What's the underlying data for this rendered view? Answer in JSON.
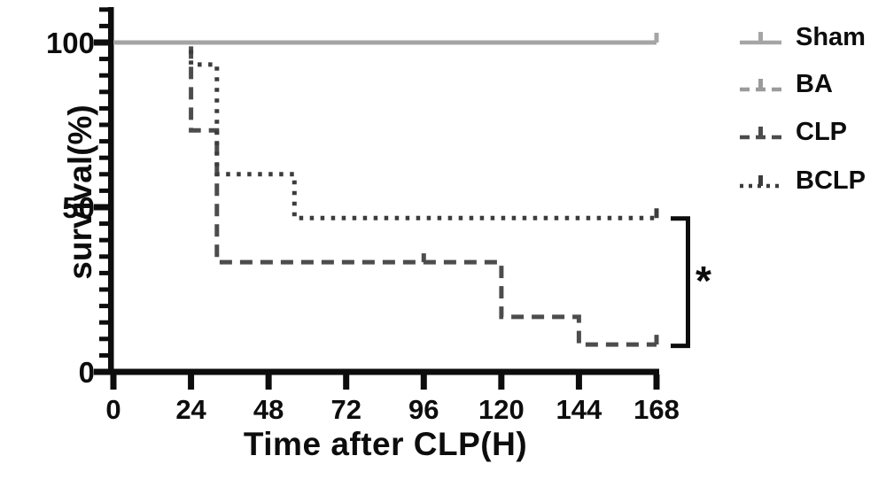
{
  "chart_data": {
    "type": "line",
    "subtype": "kaplan-meier-step",
    "title": "",
    "xlabel": "Time after CLP(H)",
    "ylabel": "survival(%)",
    "xlim": [
      0,
      168
    ],
    "ylim": [
      0,
      110
    ],
    "x_ticks": [
      "0",
      "24",
      "48",
      "72",
      "96",
      "120",
      "144",
      "168"
    ],
    "x_tick_values": [
      0,
      24,
      48,
      72,
      96,
      120,
      144,
      168
    ],
    "y_major_ticks": [
      "0",
      "50",
      "100"
    ],
    "y_major_tick_values": [
      0,
      50,
      100
    ],
    "y_minor_step": 5,
    "grid": false,
    "legend_position": "right-outside",
    "axis_color": "#0d0d0d",
    "series": [
      {
        "name": "Sham",
        "style": "solid",
        "color": "#a5a5a5",
        "points": [
          [
            0,
            100
          ],
          [
            168,
            100
          ]
        ],
        "end_tick": true
      },
      {
        "name": "BA",
        "style": "dashed",
        "color": "#9b9b9b",
        "points": [
          [
            0,
            100
          ],
          [
            168,
            100
          ]
        ],
        "end_tick": true
      },
      {
        "name": "CLP",
        "style": "dashed",
        "color": "#4c4c4c",
        "points": [
          [
            0,
            100
          ],
          [
            24,
            100
          ],
          [
            24,
            73.3
          ],
          [
            32,
            73.3
          ],
          [
            32,
            33.3
          ],
          [
            120,
            33.3
          ],
          [
            120,
            16.7
          ],
          [
            144,
            16.7
          ],
          [
            144,
            8.3
          ],
          [
            168,
            8.3
          ]
        ],
        "censor_ticks": [
          [
            96,
            33.3
          ]
        ],
        "end_tick": true
      },
      {
        "name": "BCLP",
        "style": "dotted",
        "color": "#3c3c3c",
        "points": [
          [
            0,
            100
          ],
          [
            24,
            100
          ],
          [
            24,
            93.3
          ],
          [
            32,
            93.3
          ],
          [
            32,
            60
          ],
          [
            56,
            60
          ],
          [
            56,
            46.7
          ],
          [
            168,
            46.7
          ]
        ],
        "end_tick": true
      }
    ],
    "significance": {
      "label": "*",
      "between": [
        "BCLP",
        "CLP"
      ],
      "bracket_y_values": [
        46.7,
        8.3
      ]
    }
  }
}
